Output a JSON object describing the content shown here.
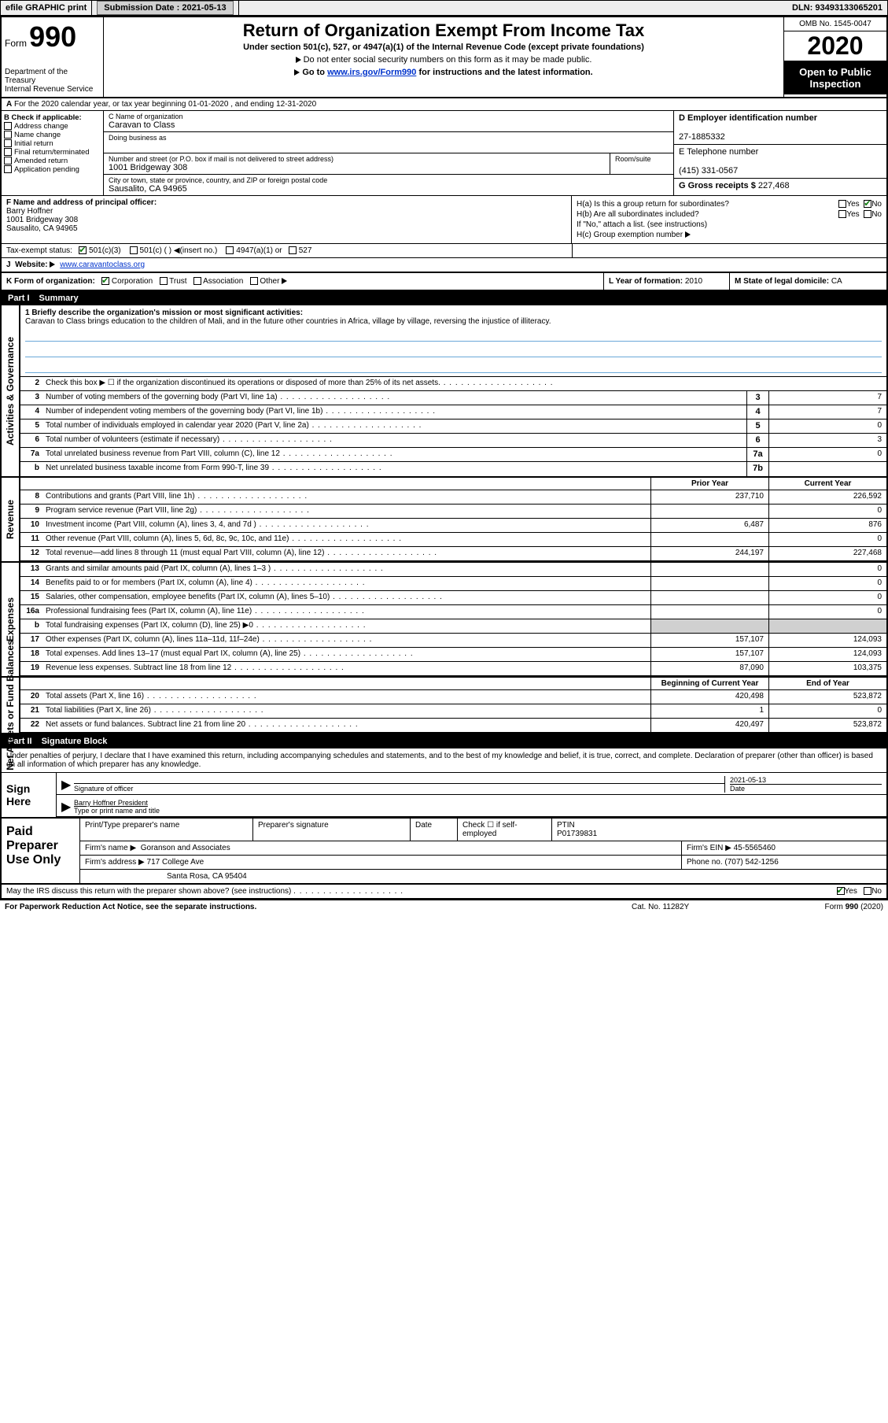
{
  "topbar": {
    "efile": "efile GRAPHIC print",
    "submission_label": "Submission Date :",
    "submission_date": "2021-05-13",
    "dln_label": "DLN:",
    "dln": "93493133065201"
  },
  "header": {
    "form_word": "Form",
    "form_number": "990",
    "dept": "Department of the Treasury\nInternal Revenue Service",
    "title": "Return of Organization Exempt From Income Tax",
    "subtitle": "Under section 501(c), 527, or 4947(a)(1) of the Internal Revenue Code (except private foundations)",
    "note1": "Do not enter social security numbers on this form as it may be made public.",
    "note2_pre": "Go to ",
    "note2_link": "www.irs.gov/Form990",
    "note2_post": " for instructions and the latest information.",
    "omb": "OMB No. 1545-0047",
    "year": "2020",
    "open": "Open to Public Inspection"
  },
  "rowA": {
    "text": "For the 2020 calendar year, or tax year beginning 01-01-2020     , and ending 12-31-2020"
  },
  "colB": {
    "label": "B Check if applicable:",
    "opts": [
      "Address change",
      "Name change",
      "Initial return",
      "Final return/terminated",
      "Amended return",
      "Application pending"
    ]
  },
  "colC": {
    "name_lbl": "C Name of organization",
    "name": "Caravan to Class",
    "dba_lbl": "Doing business as",
    "addr_lbl": "Number and street (or P.O. box if mail is not delivered to street address)",
    "room_lbl": "Room/suite",
    "addr": "1001 Bridgeway 308",
    "city_lbl": "City or town, state or province, country, and ZIP or foreign postal code",
    "city": "Sausalito, CA  94965"
  },
  "colD": {
    "ein_lbl": "D Employer identification number",
    "ein": "27-1885332",
    "phone_lbl": "E Telephone number",
    "phone": "(415) 331-0567",
    "gross_lbl": "G Gross receipts $",
    "gross": "227,468"
  },
  "rowF": {
    "lbl": "F  Name and address of principal officer:",
    "name": "Barry Hoffner",
    "addr1": "1001 Bridgeway 308",
    "addr2": "Sausalito, CA  94965"
  },
  "rowH": {
    "ha": "H(a)  Is this a group return for subordinates?",
    "hb": "H(b)  Are all subordinates included?",
    "hb_note": "If \"No,\" attach a list. (see instructions)",
    "hc": "H(c)  Group exemption number",
    "yes": "Yes",
    "no": "No"
  },
  "rowI": {
    "lbl": "Tax-exempt status:",
    "o1": "501(c)(3)",
    "o2": "501(c) (  )",
    "o2b": "(insert no.)",
    "o3": "4947(a)(1) or",
    "o4": "527"
  },
  "rowJ": {
    "lbl": "J",
    "website_lbl": "Website:",
    "website": "www.caravantoclass.org"
  },
  "rowK": {
    "lbl": "K Form of organization:",
    "opts": [
      "Corporation",
      "Trust",
      "Association",
      "Other"
    ],
    "year_lbl": "L Year of formation:",
    "year": "2010",
    "state_lbl": "M State of legal domicile:",
    "state": "CA"
  },
  "parts": {
    "p1": "Part I",
    "p1t": "Summary",
    "p2": "Part II",
    "p2t": "Signature Block"
  },
  "sections": {
    "act": "Activities & Governance",
    "rev": "Revenue",
    "exp": "Expenses",
    "net": "Net Assets or Fund Balances"
  },
  "mission": {
    "lead": "1   Briefly describe the organization's mission or most significant activities:",
    "text": "Caravan to Class brings education to the children of Mali, and in the future other countries in Africa, village by village, reversing the injustice of illiteracy."
  },
  "act_lines": [
    {
      "n": "2",
      "d": "Check this box ▶ ☐  if the organization discontinued its operations or disposed of more than 25% of its net assets.",
      "box": "",
      "v": ""
    },
    {
      "n": "3",
      "d": "Number of voting members of the governing body (Part VI, line 1a)",
      "box": "3",
      "v": "7"
    },
    {
      "n": "4",
      "d": "Number of independent voting members of the governing body (Part VI, line 1b)",
      "box": "4",
      "v": "7"
    },
    {
      "n": "5",
      "d": "Total number of individuals employed in calendar year 2020 (Part V, line 2a)",
      "box": "5",
      "v": "0"
    },
    {
      "n": "6",
      "d": "Total number of volunteers (estimate if necessary)",
      "box": "6",
      "v": "3"
    },
    {
      "n": "7a",
      "d": "Total unrelated business revenue from Part VIII, column (C), line 12",
      "box": "7a",
      "v": "0"
    },
    {
      "n": "b",
      "d": "Net unrelated business taxable income from Form 990-T, line 39",
      "box": "7b",
      "v": ""
    }
  ],
  "cols": {
    "prior": "Prior Year",
    "current": "Current Year",
    "boy": "Beginning of Current Year",
    "eoy": "End of Year"
  },
  "rev_lines": [
    {
      "n": "8",
      "d": "Contributions and grants (Part VIII, line 1h)",
      "c1": "237,710",
      "c2": "226,592"
    },
    {
      "n": "9",
      "d": "Program service revenue (Part VIII, line 2g)",
      "c1": "",
      "c2": "0"
    },
    {
      "n": "10",
      "d": "Investment income (Part VIII, column (A), lines 3, 4, and 7d )",
      "c1": "6,487",
      "c2": "876"
    },
    {
      "n": "11",
      "d": "Other revenue (Part VIII, column (A), lines 5, 6d, 8c, 9c, 10c, and 11e)",
      "c1": "",
      "c2": "0"
    },
    {
      "n": "12",
      "d": "Total revenue—add lines 8 through 11 (must equal Part VIII, column (A), line 12)",
      "c1": "244,197",
      "c2": "227,468"
    }
  ],
  "exp_lines": [
    {
      "n": "13",
      "d": "Grants and similar amounts paid (Part IX, column (A), lines 1–3 )",
      "c1": "",
      "c2": "0"
    },
    {
      "n": "14",
      "d": "Benefits paid to or for members (Part IX, column (A), line 4)",
      "c1": "",
      "c2": "0"
    },
    {
      "n": "15",
      "d": "Salaries, other compensation, employee benefits (Part IX, column (A), lines 5–10)",
      "c1": "",
      "c2": "0"
    },
    {
      "n": "16a",
      "d": "Professional fundraising fees (Part IX, column (A), line 11e)",
      "c1": "",
      "c2": "0"
    },
    {
      "n": "b",
      "d": "Total fundraising expenses (Part IX, column (D), line 25) ▶0",
      "c1": "shade",
      "c2": "shade"
    },
    {
      "n": "17",
      "d": "Other expenses (Part IX, column (A), lines 11a–11d, 11f–24e)",
      "c1": "157,107",
      "c2": "124,093"
    },
    {
      "n": "18",
      "d": "Total expenses. Add lines 13–17 (must equal Part IX, column (A), line 25)",
      "c1": "157,107",
      "c2": "124,093"
    },
    {
      "n": "19",
      "d": "Revenue less expenses. Subtract line 18 from line 12",
      "c1": "87,090",
      "c2": "103,375"
    }
  ],
  "net_lines": [
    {
      "n": "20",
      "d": "Total assets (Part X, line 16)",
      "c1": "420,498",
      "c2": "523,872"
    },
    {
      "n": "21",
      "d": "Total liabilities (Part X, line 26)",
      "c1": "1",
      "c2": "0"
    },
    {
      "n": "22",
      "d": "Net assets or fund balances. Subtract line 21 from line 20",
      "c1": "420,497",
      "c2": "523,872"
    }
  ],
  "sig": {
    "intro": "Under penalties of perjury, I declare that I have examined this return, including accompanying schedules and statements, and to the best of my knowledge and belief, it is true, correct, and complete. Declaration of preparer (other than officer) is based on all information of which preparer has any knowledge.",
    "sign_here": "Sign Here",
    "sig_of_officer": "Signature of officer",
    "date_lbl": "Date",
    "date": "2021-05-13",
    "typed_name": "Barry Hoffner  President",
    "typed_lbl": "Type or print name and title"
  },
  "prep": {
    "title": "Paid Preparer Use Only",
    "h1": "Print/Type preparer's name",
    "h2": "Preparer's signature",
    "h3": "Date",
    "h4": "Check ☐ if self-employed",
    "h5_lbl": "PTIN",
    "h5": "P01739831",
    "firm_lbl": "Firm's name  ▶",
    "firm": "Goranson and Associates",
    "ein_lbl": "Firm's EIN ▶",
    "ein": "45-5565460",
    "addr_lbl": "Firm's address ▶",
    "addr1": "717 College Ave",
    "addr2": "Santa Rosa, CA  95404",
    "phone_lbl": "Phone no.",
    "phone": "(707) 542-1256"
  },
  "footer": {
    "discuss": "May the IRS discuss this return with the preparer shown above? (see instructions)",
    "yes": "Yes",
    "no": "No",
    "paperwork": "For Paperwork Reduction Act Notice, see the separate instructions.",
    "cat": "Cat. No. 11282Y",
    "form": "Form 990 (2020)"
  }
}
